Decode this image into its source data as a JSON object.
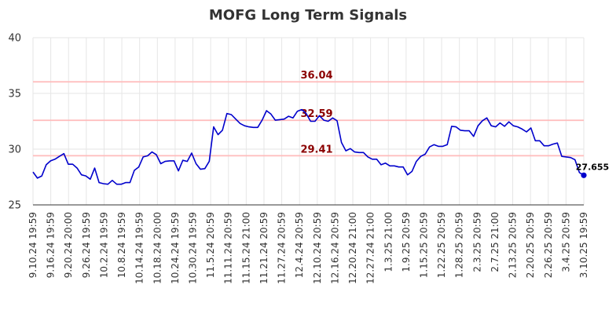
{
  "chart_data": {
    "type": "line",
    "title": "MOFG Long Term Signals",
    "xlabel": "",
    "ylabel": "",
    "ylim": [
      25,
      40
    ],
    "yticks": [
      25,
      30,
      35,
      40
    ],
    "grid": true,
    "line_color": "#0000cc",
    "signal_line_color": "#ffbbbb",
    "signal_label_color": "#8b0000",
    "x_tick_labels": [
      "9.10.24 19:59",
      "9.16.24 19:59",
      "9.20.24 20:00",
      "9.26.24 19:59",
      "10.2.24 19:59",
      "10.8.24 19:59",
      "10.14.24 19:59",
      "10.18.24 20:00",
      "10.24.24 19:59",
      "10.30.24 19:59",
      "11.5.24 20:59",
      "11.11.24 20:59",
      "11.15.24 21:00",
      "11.21.24 20:59",
      "11.27.24 20:59",
      "12.4.24 20:59",
      "12.10.24 20:59",
      "12.16.24 20:59",
      "12.20.24 21:00",
      "12.27.24 21:00",
      "1.3.25 21:00",
      "1.9.25 20:59",
      "1.15.25 20:59",
      "1.22.25 20:59",
      "1.28.25 20:59",
      "2.3.25 20:59",
      "2.7.25 21:00",
      "2.13.25 20:59",
      "2.20.25 20:59",
      "2.26.25 20:59",
      "3.4.25 20:59",
      "3.10.25 19:59"
    ],
    "signals": [
      {
        "value": 36.04,
        "label": "36.04"
      },
      {
        "value": 32.59,
        "label": "32.59"
      },
      {
        "value": 29.41,
        "label": "29.41"
      }
    ],
    "last_value_label": "27.655",
    "series": [
      {
        "values": [
          27.95,
          27.4,
          27.6,
          28.6,
          28.95,
          29.1,
          29.35,
          29.6,
          28.65,
          28.65,
          28.3,
          27.7,
          27.6,
          27.3,
          28.3,
          27.0,
          26.9,
          26.85,
          27.2,
          26.85,
          26.85,
          27.0,
          27.0,
          28.1,
          28.4,
          29.3,
          29.4,
          29.75,
          29.5,
          28.7,
          28.9,
          28.95,
          28.95,
          28.05,
          29.0,
          28.9,
          29.65,
          28.7,
          28.2,
          28.25,
          28.9,
          32.0,
          31.3,
          31.7,
          33.2,
          33.1,
          32.7,
          32.3,
          32.1,
          32.0,
          31.95,
          31.95,
          32.6,
          33.45,
          33.15,
          32.6,
          32.65,
          32.7,
          32.95,
          32.8,
          33.4,
          33.55,
          33.2,
          32.5,
          32.5,
          33.0,
          32.6,
          32.5,
          32.8,
          32.55,
          30.6,
          29.85,
          30.05,
          29.75,
          29.7,
          29.7,
          29.3,
          29.1,
          29.1,
          28.6,
          28.75,
          28.5,
          28.5,
          28.4,
          28.4,
          27.7,
          28.0,
          28.9,
          29.35,
          29.55,
          30.2,
          30.4,
          30.25,
          30.25,
          30.4,
          32.05,
          32.0,
          31.7,
          31.65,
          31.65,
          31.15,
          32.1,
          32.55,
          32.8,
          32.1,
          32.0,
          32.35,
          32.05,
          32.45,
          32.1,
          32.0,
          31.8,
          31.55,
          31.9,
          30.75,
          30.75,
          30.3,
          30.3,
          30.45,
          30.55,
          29.35,
          29.3,
          29.25,
          29.05,
          27.9,
          27.655
        ]
      }
    ]
  }
}
